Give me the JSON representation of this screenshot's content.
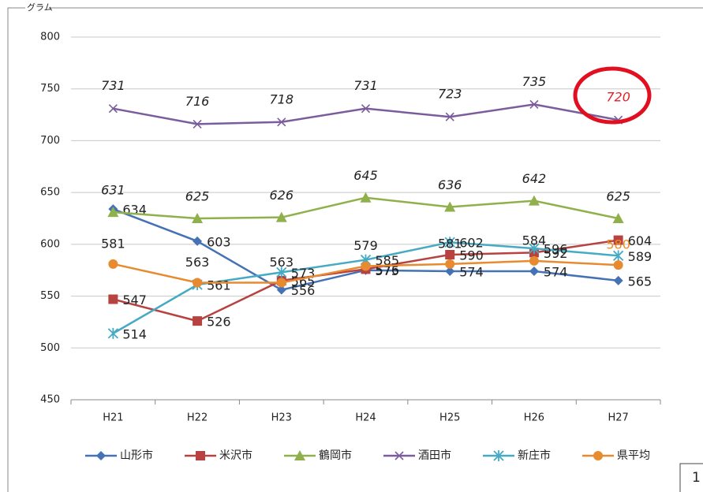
{
  "chart_data": {
    "type": "line",
    "y_label": "グラム",
    "categories": [
      "H21",
      "H22",
      "H23",
      "H24",
      "H25",
      "H26",
      "H27"
    ],
    "ylim": [
      450,
      800
    ],
    "yticks": [
      450,
      500,
      550,
      600,
      650,
      700,
      750,
      800
    ],
    "grid": true,
    "series": [
      {
        "name": "山形市",
        "color": "#4472b4",
        "marker": "diamond",
        "values": [
          634,
          603,
          556,
          575,
          574,
          574,
          565
        ]
      },
      {
        "name": "米沢市",
        "color": "#b84240",
        "marker": "square",
        "values": [
          547,
          526,
          565,
          576,
          590,
          592,
          604
        ]
      },
      {
        "name": "鶴岡市",
        "color": "#8fb04a",
        "marker": "triangle",
        "values": [
          631,
          625,
          626,
          645,
          636,
          642,
          625
        ]
      },
      {
        "name": "酒田市",
        "color": "#7b5c9c",
        "marker": "x",
        "values": [
          731,
          716,
          718,
          731,
          723,
          735,
          720
        ]
      },
      {
        "name": "新庄市",
        "color": "#46aac4",
        "marker": "star",
        "values": [
          514,
          561,
          573,
          585,
          602,
          596,
          589
        ]
      },
      {
        "name": "県平均",
        "color": "#e88a30",
        "marker": "circle",
        "values": [
          581,
          563,
          563,
          579,
          581,
          584,
          580
        ]
      }
    ]
  },
  "page_number": "1"
}
